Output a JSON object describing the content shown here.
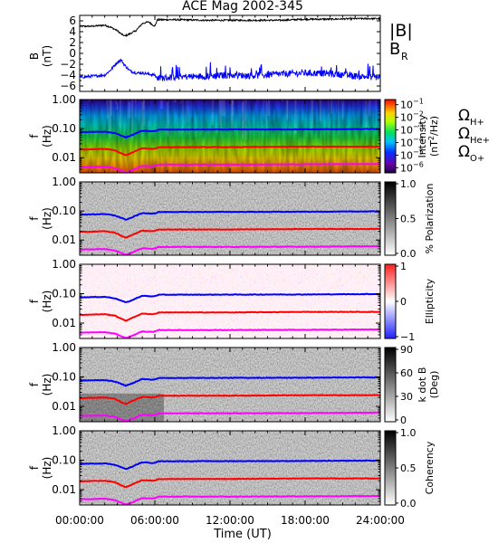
{
  "chart_data": {
    "title": "ACE Mag 2002-345",
    "type": "line",
    "x_axis": {
      "label": "Time (UT)",
      "range_hours": [
        0,
        24
      ],
      "tick_labels": [
        "00:00:00",
        "06:00:00",
        "12:00:00",
        "18:00:00",
        "24:00:00"
      ]
    },
    "field_panel": {
      "ylabel": [
        "B",
        "(nT)"
      ],
      "ylim": [
        -7,
        7
      ],
      "yticks": [
        -6,
        -4,
        -2,
        0,
        2,
        4,
        6
      ],
      "series": [
        {
          "name": "|B|",
          "color": "#000000",
          "x": [
            0,
            1,
            2,
            2.5,
            3,
            3.3,
            3.6,
            4,
            4.5,
            5,
            5.5,
            6,
            6.2,
            8,
            10,
            12,
            14,
            16,
            18,
            20,
            22,
            24
          ],
          "y": [
            5.0,
            5.0,
            5.2,
            4.8,
            4.2,
            3.6,
            3.2,
            3.6,
            4.2,
            5.5,
            5.8,
            5.0,
            6.2,
            6.2,
            6.1,
            6.1,
            6.1,
            6.1,
            6.3,
            6.3,
            6.4,
            6.4
          ]
        },
        {
          "name": "B",
          "sub": "R",
          "color": "#0000ff",
          "x": [
            0,
            1,
            2,
            2.5,
            3,
            3.3,
            3.6,
            4,
            4.5,
            5,
            5.5,
            6,
            6.2,
            8,
            10,
            12,
            14,
            16,
            18,
            20,
            22,
            24
          ],
          "y": [
            -4.4,
            -4.2,
            -4.0,
            -3.0,
            -1.6,
            -1.2,
            -2.2,
            -3.2,
            -3.6,
            -3.6,
            -3.8,
            -4.0,
            -4.6,
            -4.3,
            -4.2,
            -4.0,
            -4.1,
            -3.8,
            -3.6,
            -3.7,
            -4.2,
            -4.4
          ]
        }
      ]
    },
    "spectrogram_panels": [
      {
        "name": "intensity",
        "colorbar": {
          "scale": "rainbow",
          "tick_labels": [
            "10^-1",
            "10^-2",
            "10^-3",
            "10^-4",
            "10^-5",
            "10^-6"
          ],
          "label": [
            "Intensity",
            "(nT^2/Hz)"
          ]
        }
      },
      {
        "name": "polarization",
        "colorbar": {
          "scale": "gray",
          "tick_labels": [
            "1.0",
            "0.5",
            "0.0"
          ],
          "label": [
            "% Polarization"
          ]
        }
      },
      {
        "name": "ellipticity",
        "colorbar": {
          "scale": "red-white-blue",
          "tick_labels": [
            "1",
            "0",
            "−1"
          ],
          "label": [
            "Ellipticity"
          ]
        }
      },
      {
        "name": "k_dot_b",
        "colorbar": {
          "scale": "gray",
          "tick_labels": [
            "90",
            "60",
            "30",
            "0"
          ],
          "label": [
            "k dot B",
            "(Deg)"
          ]
        }
      },
      {
        "name": "coherency",
        "colorbar": {
          "scale": "gray",
          "tick_labels": [
            "1.0",
            "0.5",
            "0.0"
          ],
          "label": [
            "Coherency"
          ]
        }
      }
    ],
    "frequency_axis": {
      "ylabel": [
        "f",
        "(Hz)"
      ],
      "scale": "log",
      "ylim": [
        0.003,
        1.0
      ],
      "tick_labels": [
        "1.00",
        "0.10",
        "0.01"
      ]
    },
    "gyrofrequency_series": [
      {
        "name": "Ω",
        "sub": "H+",
        "color": "#0000ff",
        "x": [
          0,
          2,
          2.8,
          3.3,
          3.7,
          4.2,
          5.0,
          5.8,
          6.1,
          6.3,
          12,
          18,
          24
        ],
        "f": [
          0.075,
          0.078,
          0.07,
          0.058,
          0.05,
          0.06,
          0.085,
          0.08,
          0.085,
          0.092,
          0.093,
          0.094,
          0.097
        ]
      },
      {
        "name": "Ω",
        "sub": "He+",
        "color": "#ff0000",
        "x": [
          0,
          2,
          2.8,
          3.3,
          3.7,
          4.2,
          5.0,
          5.8,
          6.1,
          6.3,
          12,
          18,
          24
        ],
        "f": [
          0.019,
          0.02,
          0.018,
          0.014,
          0.012,
          0.015,
          0.021,
          0.02,
          0.021,
          0.023,
          0.023,
          0.024,
          0.024
        ]
      },
      {
        "name": "Ω",
        "sub": "O+",
        "color": "#ff00ff",
        "x": [
          0,
          2,
          2.8,
          3.3,
          3.7,
          4.2,
          5.0,
          5.8,
          6.1,
          6.3,
          12,
          18,
          24
        ],
        "f": [
          0.0047,
          0.0049,
          0.0044,
          0.0036,
          0.0031,
          0.0037,
          0.0052,
          0.005,
          0.0053,
          0.0058,
          0.0058,
          0.0059,
          0.0061
        ]
      }
    ]
  }
}
